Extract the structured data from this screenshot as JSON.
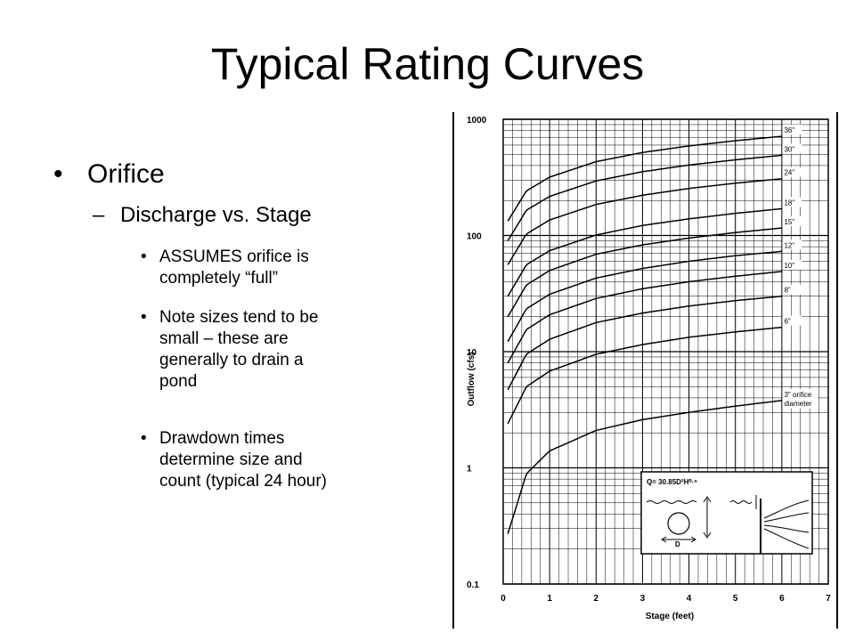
{
  "slide": {
    "title": "Typical Rating Curves",
    "bullets": {
      "level1": {
        "marker": "•",
        "text": "Orifice"
      },
      "level2": {
        "marker": "–",
        "text": "Discharge vs. Stage"
      },
      "level3": [
        {
          "marker": "•",
          "lines": [
            "ASSUMES orifice is",
            "completely “full”"
          ]
        },
        {
          "marker": "•",
          "lines": [
            "Note sizes tend to be",
            "small – these are",
            "generally to drain a",
            "pond"
          ]
        },
        {
          "marker": "•",
          "lines": [
            "Drawdown times",
            "determine size and",
            "count (typical 24 hour)"
          ]
        }
      ]
    }
  },
  "chart_data": {
    "type": "line",
    "title": "",
    "xlabel": "Stage (feet)",
    "ylabel": "Outflow (cfs)",
    "x_scale": "linear",
    "y_scale": "log",
    "xlim": [
      0,
      7
    ],
    "ylim": [
      0.1,
      1000
    ],
    "x_ticks": [
      "0",
      "1",
      "2",
      "3",
      "4",
      "5",
      "6",
      "7"
    ],
    "y_ticks": [
      "0.1",
      "1",
      "10",
      "100",
      "1000"
    ],
    "grid": true,
    "series": [
      {
        "name": "3\" orifice diameter",
        "x": [
          0.1,
          0.5,
          1,
          2,
          3,
          4,
          5,
          6
        ],
        "y": [
          0.27,
          0.89,
          1.4,
          2.1,
          2.6,
          3.0,
          3.4,
          3.8
        ]
      },
      {
        "name": "6\"",
        "x": [
          0.1,
          0.5,
          1,
          2,
          3,
          4,
          5,
          6
        ],
        "y": [
          2.4,
          5.0,
          6.8,
          9.5,
          11.5,
          13.3,
          14.8,
          16.2
        ]
      },
      {
        "name": "8\"",
        "x": [
          0.1,
          0.5,
          1,
          2,
          3,
          4,
          5,
          6
        ],
        "y": [
          4.7,
          9.5,
          12.8,
          17.8,
          21.5,
          24.7,
          27.5,
          30
        ]
      },
      {
        "name": "10\"",
        "x": [
          0.1,
          0.5,
          1,
          2,
          3,
          4,
          5,
          6
        ],
        "y": [
          8.0,
          15.5,
          20.8,
          28.7,
          34.8,
          40,
          44.6,
          49
        ]
      },
      {
        "name": "12\"",
        "x": [
          0.1,
          0.5,
          1,
          2,
          3,
          4,
          5,
          6
        ],
        "y": [
          12.2,
          23.4,
          31.2,
          43,
          52,
          60,
          67,
          73
        ]
      },
      {
        "name": "15\"",
        "x": [
          0.1,
          0.5,
          1,
          2,
          3,
          4,
          5,
          6
        ],
        "y": [
          20,
          37.5,
          50,
          69,
          83,
          95,
          106,
          116
        ]
      },
      {
        "name": "18\"",
        "x": [
          0.1,
          0.5,
          1,
          2,
          3,
          4,
          5,
          6
        ],
        "y": [
          30,
          56,
          74,
          101,
          122,
          139,
          155,
          170
        ]
      },
      {
        "name": "24\"",
        "x": [
          0.1,
          0.5,
          1,
          2,
          3,
          4,
          5,
          6
        ],
        "y": [
          56,
          103,
          136,
          185,
          222,
          254,
          282,
          308
        ]
      },
      {
        "name": "30\"",
        "x": [
          0.1,
          0.5,
          1,
          2,
          3,
          4,
          5,
          6
        ],
        "y": [
          90,
          165,
          217,
          295,
          354,
          404,
          448,
          490
        ]
      },
      {
        "name": "36\"",
        "x": [
          0.1,
          0.5,
          1,
          2,
          3,
          4,
          5,
          6
        ],
        "y": [
          133,
          242,
          318,
          432,
          518,
          590,
          654,
          714
        ]
      }
    ],
    "inset": {
      "formula": "Q= 30.85D²H⁰·⁵",
      "diameter_label": "D"
    }
  }
}
